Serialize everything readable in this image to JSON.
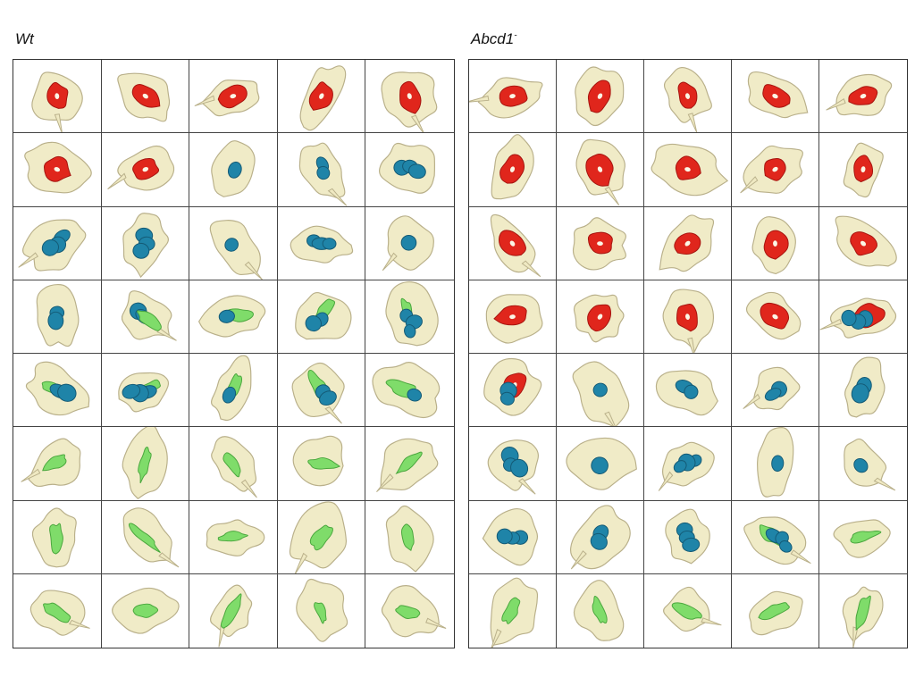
{
  "panels": [
    {
      "id": "wt",
      "title": "Wt",
      "title_sup": "",
      "cells": [
        "red",
        "red",
        "red",
        "red",
        "red",
        "red",
        "red",
        "blue",
        "blue",
        "blue",
        "blue",
        "blue",
        "blue",
        "blue",
        "blue",
        "blue",
        "blue-green",
        "green-blue",
        "green-blue",
        "green-blue",
        "green-blue",
        "green-blue",
        "green-blue",
        "green-blue",
        "green-blue",
        "green",
        "green",
        "green",
        "green",
        "green",
        "green",
        "green",
        "green",
        "green",
        "green",
        "green",
        "green",
        "green",
        "green",
        "green"
      ]
    },
    {
      "id": "abcd",
      "title": "Abcd1",
      "title_sup": "-",
      "cells": [
        "red",
        "red",
        "red",
        "red",
        "red",
        "red",
        "red",
        "red",
        "red",
        "red",
        "red",
        "red",
        "red",
        "red",
        "red",
        "red",
        "red",
        "red",
        "red",
        "red-blue",
        "red-blue",
        "blue",
        "blue",
        "blue",
        "blue",
        "blue",
        "blue",
        "blue",
        "blue",
        "blue",
        "blue",
        "blue",
        "blue",
        "green-blue",
        "green",
        "green",
        "green",
        "green",
        "green",
        "green"
      ]
    }
  ],
  "colors": {
    "membrane": "#efe9c2",
    "membrane_edge": "#b9b08a",
    "red": "#e0261c",
    "red_dark": "#a5140f",
    "blue": "#1f84a8",
    "blue_dark": "#145a75",
    "green": "#7fdc6a",
    "green_dark": "#4aa63d"
  }
}
